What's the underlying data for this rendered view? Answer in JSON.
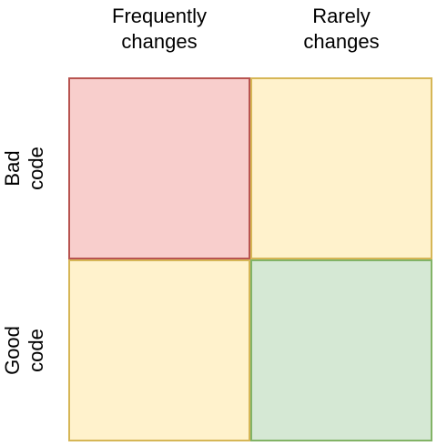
{
  "columns": [
    {
      "label": "Frequently\nchanges"
    },
    {
      "label": "Rarely\nchanges"
    }
  ],
  "rows": [
    {
      "label": "Bad\ncode"
    },
    {
      "label": "Good\ncode"
    }
  ],
  "cells": {
    "bad_frequent": {
      "fill": "#f8cecc",
      "stroke": "#b85450"
    },
    "bad_rare": {
      "fill": "#fff2cc",
      "stroke": "#d6b656"
    },
    "good_frequent": {
      "fill": "#fff2cc",
      "stroke": "#d6b656"
    },
    "good_rare": {
      "fill": "#d5e8d4",
      "stroke": "#82b366"
    }
  }
}
